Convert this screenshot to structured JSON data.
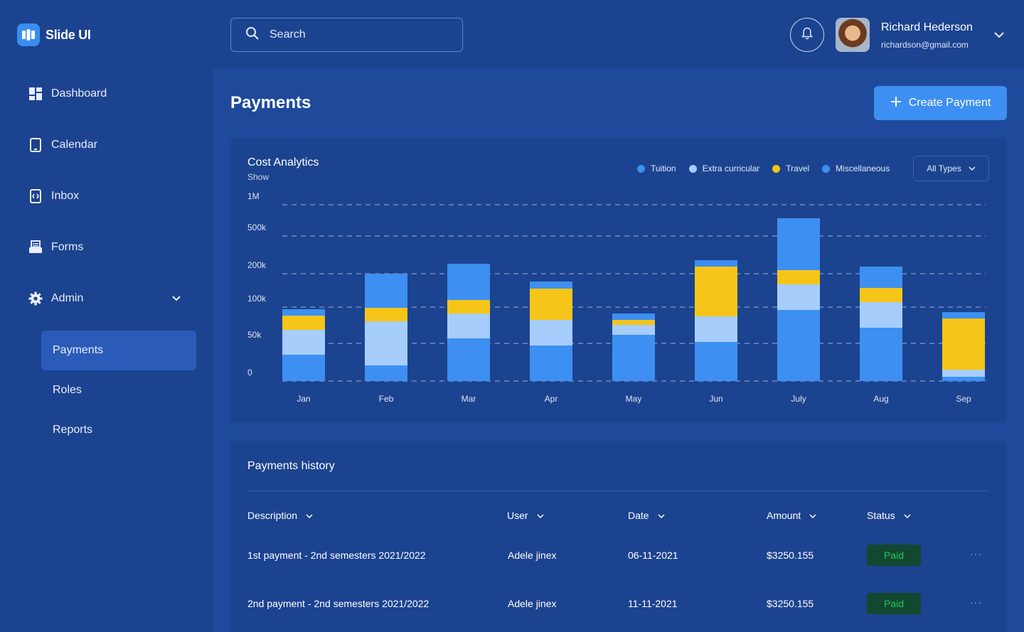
{
  "app": {
    "name": "Slide UI"
  },
  "sidebar": {
    "items": [
      {
        "label": "Dashboard",
        "icon": "dashboard-icon"
      },
      {
        "label": "Calendar",
        "icon": "calendar-icon"
      },
      {
        "label": "Inbox",
        "icon": "inbox-icon"
      },
      {
        "label": "Forms",
        "icon": "forms-icon"
      },
      {
        "label": "Admin",
        "icon": "gear-icon"
      }
    ],
    "admin_sub": [
      {
        "label": "Payments",
        "active": true
      },
      {
        "label": "Roles",
        "active": false
      },
      {
        "label": "Reports",
        "active": false
      }
    ]
  },
  "header": {
    "search_placeholder": "Search",
    "user": {
      "name": "Richard Hederson",
      "email": "richardson@gmail.com"
    }
  },
  "page": {
    "title": "Payments",
    "create_label": "Create Payment"
  },
  "colors": {
    "tuition": "#3d8ff2",
    "extra": "#a6cdfb",
    "travel": "#f5c518",
    "misc": "#3d8ff2",
    "paid_text": "#22c55e"
  },
  "cost_card": {
    "title": "Cost Analytics",
    "subtitle": "Show",
    "legend": [
      "Tuition",
      "Extra curricular",
      "Travel",
      "Miscellaneous"
    ],
    "filter": "All Types"
  },
  "chart_data": {
    "type": "bar",
    "stacked": true,
    "categories": [
      "Jan",
      "Feb",
      "Mar",
      "Apr",
      "May",
      "Jun",
      "July",
      "Aug",
      "Sep"
    ],
    "y_ticks": [
      "0",
      "50k",
      "100k",
      "200k",
      "500k",
      "1M"
    ],
    "series": [
      {
        "name": "Tuition",
        "values": [
          37,
          22,
          60,
          50,
          65,
          55,
          100,
          75,
          6
        ]
      },
      {
        "name": "Extra curricular",
        "values": [
          35,
          62,
          35,
          36,
          14,
          36,
          36,
          36,
          10
        ]
      },
      {
        "name": "Travel",
        "values": [
          20,
          19,
          19,
          44,
          7,
          70,
          20,
          20,
          72
        ]
      },
      {
        "name": "Miscellaneous",
        "values": [
          9,
          48,
          51,
          10,
          9,
          9,
          73,
          30,
          9
        ]
      }
    ],
    "grid": true,
    "legend_position": "top-right"
  },
  "history": {
    "title": "Payments history",
    "columns": [
      "Description",
      "User",
      "Date",
      "Amount",
      "Status"
    ],
    "rows": [
      {
        "description": "1st payment - 2nd semesters 2021/2022",
        "user": "Adele jinex",
        "date": "06-11-2021",
        "amount": "$3250.155",
        "status": "Paid"
      },
      {
        "description": "2nd payment - 2nd semesters 2021/2022",
        "user": "Adele jinex",
        "date": "11-11-2021",
        "amount": "$3250.155",
        "status": "Paid"
      }
    ],
    "row_menu": "···"
  }
}
